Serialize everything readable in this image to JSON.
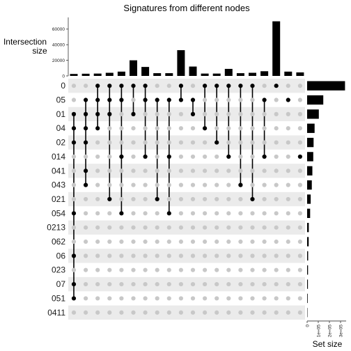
{
  "chart_data": {
    "type": "upset",
    "title": "Signatures from different nodes",
    "intersection_axis_title": "Intersection\nsize",
    "set_axis_title": "Set size",
    "sets": [
      "0",
      "05",
      "01",
      "04",
      "02",
      "014",
      "041",
      "043",
      "021",
      "054",
      "0213",
      "062",
      "06",
      "023",
      "07",
      "051",
      "0411"
    ],
    "set_sizes": [
      340000,
      145000,
      105000,
      67000,
      58000,
      55000,
      47000,
      42000,
      32000,
      27000,
      15000,
      14000,
      9000,
      8000,
      7000,
      5000,
      3000
    ],
    "intersections": [
      {
        "sets": [
          "01",
          "04",
          "02",
          "054",
          "06",
          "07",
          "051"
        ],
        "size": 2500
      },
      {
        "sets": [
          "05",
          "01",
          "04",
          "02",
          "041",
          "043"
        ],
        "size": 2800
      },
      {
        "sets": [
          "0",
          "05",
          "01",
          "04"
        ],
        "size": 3000
      },
      {
        "sets": [
          "0",
          "05",
          "01",
          "021"
        ],
        "size": 4000
      },
      {
        "sets": [
          "0",
          "05",
          "014",
          "054"
        ],
        "size": 5500
      },
      {
        "sets": [
          "0",
          "01"
        ],
        "size": 20000
      },
      {
        "sets": [
          "0",
          "05",
          "014"
        ],
        "size": 11500
      },
      {
        "sets": [
          "05",
          "021"
        ],
        "size": 3500
      },
      {
        "sets": [
          "05",
          "014",
          "054"
        ],
        "size": 3500
      },
      {
        "sets": [
          "0",
          "05"
        ],
        "size": 33000
      },
      {
        "sets": [
          "01",
          "05"
        ],
        "size": 12000
      },
      {
        "sets": [
          "0",
          "04"
        ],
        "size": 3000
      },
      {
        "sets": [
          "0",
          "02"
        ],
        "size": 3000
      },
      {
        "sets": [
          "0",
          "014"
        ],
        "size": 9000
      },
      {
        "sets": [
          "0",
          "043"
        ],
        "size": 3500
      },
      {
        "sets": [
          "0",
          "021"
        ],
        "size": 4000
      },
      {
        "sets": [
          "05",
          "014"
        ],
        "size": 6000
      },
      {
        "sets": [
          "0"
        ],
        "size": 70000
      },
      {
        "sets": [
          "05"
        ],
        "size": 5500
      },
      {
        "sets": [
          "014"
        ],
        "size": 4500
      }
    ],
    "intersection_ylim": [
      0,
      75000
    ],
    "intersection_yticks": [
      "0",
      "20000",
      "40000",
      "60000"
    ],
    "set_xlim": [
      0,
      350000
    ],
    "set_xticks": [
      "0",
      "1e+05",
      "2e+05",
      "3e+05"
    ],
    "colors": {
      "bar": "#000000",
      "dot_active": "#000000",
      "dot_inactive": "#c8c8c8",
      "stripe": "#ebebeb"
    }
  }
}
